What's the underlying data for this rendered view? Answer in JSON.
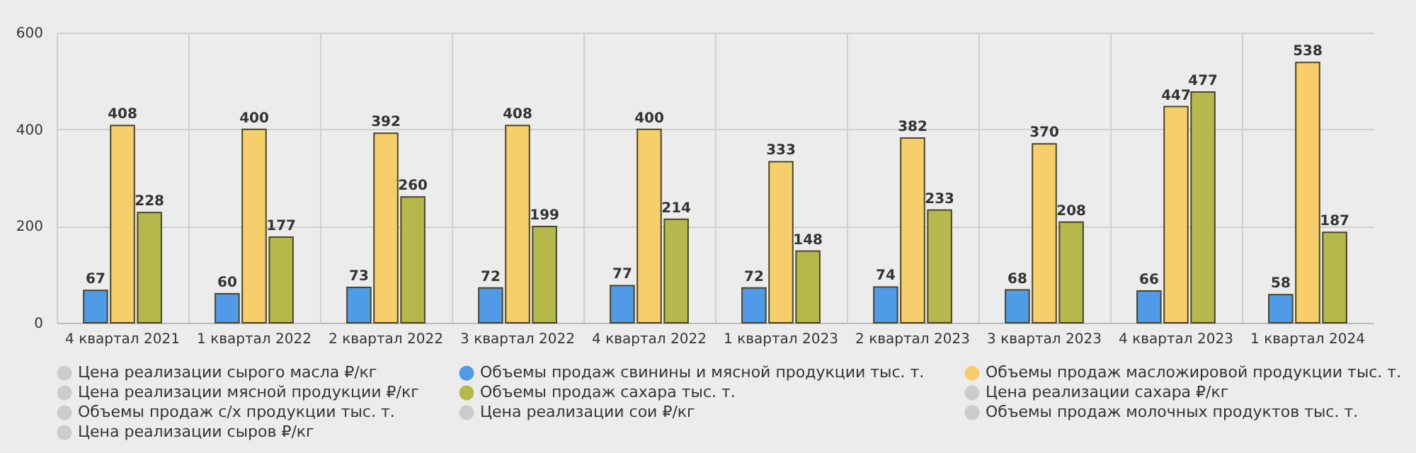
{
  "chart_data": {
    "type": "bar",
    "categories": [
      "4 квартал 2021",
      "1 квартал 2022",
      "2 квартал 2022",
      "3 квартал 2022",
      "4 квартал 2022",
      "1 квартал 2023",
      "2 квартал 2023",
      "3 квартал 2023",
      "4 квартал 2023",
      "1 квартал 2024"
    ],
    "series": [
      {
        "name": "Цена реализации сырого масла ₽/кг",
        "color": "#cccccc",
        "values": [
          null,
          null,
          null,
          null,
          null,
          null,
          null,
          null,
          null,
          null
        ]
      },
      {
        "name": "Объемы продаж свинины и мясной продукции тыс. т.",
        "color": "#4f9be8",
        "values": [
          67,
          60,
          73,
          72,
          77,
          72,
          74,
          68,
          66,
          58
        ]
      },
      {
        "name": "Объемы продаж масложировой продукции тыс. т.",
        "color": "#f7cf6a",
        "values": [
          408,
          400,
          392,
          408,
          400,
          333,
          382,
          370,
          447,
          538
        ]
      },
      {
        "name": "Цена реализации мясной продукции ₽/кг",
        "color": "#cccccc",
        "values": [
          null,
          null,
          null,
          null,
          null,
          null,
          null,
          null,
          null,
          null
        ]
      },
      {
        "name": "Объемы продаж сахара тыс. т.",
        "color": "#b5b84a",
        "values": [
          228,
          177,
          260,
          199,
          214,
          148,
          233,
          208,
          477,
          187
        ]
      },
      {
        "name": "Цена реализации сахара ₽/кг",
        "color": "#cccccc",
        "values": [
          null,
          null,
          null,
          null,
          null,
          null,
          null,
          null,
          null,
          null
        ]
      },
      {
        "name": "Объемы продаж с/х продукции тыс. т.",
        "color": "#cccccc",
        "values": [
          null,
          null,
          null,
          null,
          null,
          null,
          null,
          null,
          null,
          null
        ]
      },
      {
        "name": "Цена реализации сои ₽/кг",
        "color": "#cccccc",
        "values": [
          null,
          null,
          null,
          null,
          null,
          null,
          null,
          null,
          null,
          null
        ]
      },
      {
        "name": "Объемы продаж молочных продуктов тыс. т.",
        "color": "#cccccc",
        "values": [
          null,
          null,
          null,
          null,
          null,
          null,
          null,
          null,
          null,
          null
        ]
      },
      {
        "name": "Цена реализации сыров ₽/кг",
        "color": "#cccccc",
        "values": [
          null,
          null,
          null,
          null,
          null,
          null,
          null,
          null,
          null,
          null
        ]
      }
    ],
    "ylim": [
      0,
      600
    ],
    "yticks": [
      0,
      200,
      400,
      600
    ],
    "grid": true,
    "legend": "bottom",
    "data_labels": true
  }
}
